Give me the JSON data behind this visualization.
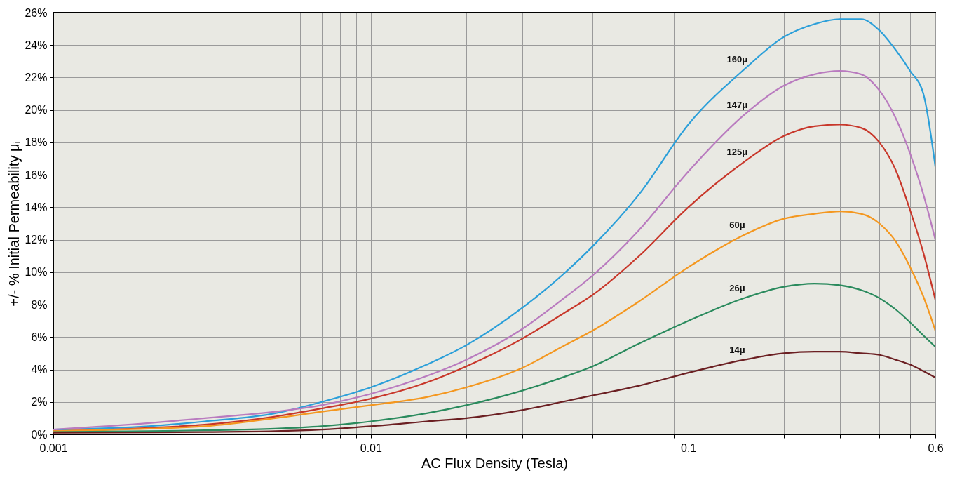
{
  "chart_data": {
    "type": "line",
    "xlabel": "AC Flux Density (Tesla)",
    "ylabel": "+/- % Initial Permeability μᵢ",
    "x": [
      0.001,
      0.002,
      0.003,
      0.005,
      0.007,
      0.01,
      0.015,
      0.02,
      0.03,
      0.04,
      0.05,
      0.07,
      0.1,
      0.15,
      0.2,
      0.25,
      0.3,
      0.35,
      0.4,
      0.45,
      0.5,
      0.55,
      0.6
    ],
    "series": [
      {
        "name": "160μ",
        "color": "#2b9fd9",
        "values": [
          0.3,
          0.5,
          0.8,
          1.3,
          2.0,
          2.9,
          4.3,
          5.5,
          7.8,
          9.8,
          11.6,
          14.8,
          19.1,
          22.5,
          24.5,
          25.3,
          25.6,
          25.6,
          24.9,
          23.7,
          22.4,
          21.0,
          16.5
        ]
      },
      {
        "name": "147μ",
        "color": "#b97bbf",
        "values": [
          0.3,
          0.7,
          1.0,
          1.4,
          1.8,
          2.5,
          3.6,
          4.6,
          6.5,
          8.3,
          9.8,
          12.6,
          16.2,
          19.7,
          21.5,
          22.2,
          22.4,
          22.2,
          21.2,
          19.5,
          17.3,
          14.8,
          12.0
        ]
      },
      {
        "name": "125μ",
        "color": "#c8372a",
        "values": [
          0.2,
          0.4,
          0.6,
          1.1,
          1.6,
          2.2,
          3.2,
          4.2,
          5.9,
          7.4,
          8.6,
          11.0,
          14.0,
          16.8,
          18.4,
          19.0,
          19.1,
          18.9,
          18.0,
          16.3,
          13.8,
          11.2,
          8.3
        ]
      },
      {
        "name": "60μ",
        "color": "#f4971f",
        "values": [
          0.2,
          0.35,
          0.5,
          1.0,
          1.4,
          1.8,
          2.3,
          2.9,
          4.1,
          5.4,
          6.4,
          8.2,
          10.3,
          12.3,
          13.3,
          13.6,
          13.75,
          13.6,
          13.0,
          11.9,
          10.3,
          8.5,
          6.4
        ]
      },
      {
        "name": "26μ",
        "color": "#2a8a5d",
        "values": [
          0.15,
          0.2,
          0.25,
          0.35,
          0.5,
          0.8,
          1.3,
          1.8,
          2.7,
          3.5,
          4.2,
          5.6,
          7.0,
          8.4,
          9.1,
          9.3,
          9.2,
          8.9,
          8.4,
          7.7,
          6.9,
          6.1,
          5.4
        ]
      },
      {
        "name": "14μ",
        "color": "#6b1f22",
        "values": [
          0.1,
          0.12,
          0.15,
          0.2,
          0.3,
          0.5,
          0.8,
          1.0,
          1.5,
          2.0,
          2.4,
          3.0,
          3.8,
          4.6,
          5.0,
          5.1,
          5.1,
          5.0,
          4.9,
          4.6,
          4.3,
          3.9,
          3.5
        ]
      }
    ],
    "log": "x",
    "xlim": [
      0.001,
      0.6
    ],
    "xticks": [
      0.001,
      {
        "value": 0.002,
        "label": null
      },
      {
        "value": 0.003,
        "label": null
      },
      {
        "value": 0.004,
        "label": null
      },
      {
        "value": 0.005,
        "label": null
      },
      {
        "value": 0.006,
        "label": null
      },
      {
        "value": 0.007,
        "label": null
      },
      {
        "value": 0.008,
        "label": null
      },
      {
        "value": 0.009,
        "label": null
      },
      0.01,
      {
        "value": 0.02,
        "label": null
      },
      {
        "value": 0.03,
        "label": null
      },
      {
        "value": 0.04,
        "label": null
      },
      {
        "value": 0.05,
        "label": null
      },
      {
        "value": 0.06,
        "label": null
      },
      {
        "value": 0.07,
        "label": null
      },
      {
        "value": 0.08,
        "label": null
      },
      {
        "value": 0.09,
        "label": null
      },
      0.1,
      {
        "value": 0.2,
        "label": null
      },
      {
        "value": 0.3,
        "label": null
      },
      {
        "value": 0.4,
        "label": null
      },
      {
        "value": 0.5,
        "label": null
      },
      0.6
    ],
    "ylim": [
      0,
      26
    ],
    "yticks": [
      {
        "value": 0,
        "label": "0%"
      },
      {
        "value": 2,
        "label": "2%"
      },
      {
        "value": 4,
        "label": "4%"
      },
      {
        "value": 6,
        "label": "6%"
      },
      {
        "value": 8,
        "label": "8%"
      },
      {
        "value": 10,
        "label": "10%"
      },
      {
        "value": 12,
        "label": "12%"
      },
      {
        "value": 14,
        "label": "14%"
      },
      {
        "value": 16,
        "label": "16%"
      },
      {
        "value": 18,
        "label": "18%"
      },
      {
        "value": 20,
        "label": "20%"
      },
      {
        "value": 22,
        "label": "22%"
      },
      {
        "value": 24,
        "label": "24%"
      },
      {
        "value": 26,
        "label": "26%"
      }
    ],
    "grid": true,
    "legend": false,
    "marker": "none",
    "line_style": "solid"
  }
}
